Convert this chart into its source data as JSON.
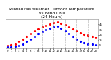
{
  "title": "Milwaukee Weather Outdoor Temperature\nvs Wind Chill\n(24 Hours)",
  "title_fontsize": 4.2,
  "bg_color": "#ffffff",
  "plot_bg_color": "#ffffff",
  "grid_color": "#aaaaaa",
  "temp_color": "#ff0000",
  "wind_color": "#0000ff",
  "hours": [
    0,
    1,
    2,
    3,
    4,
    5,
    6,
    7,
    8,
    9,
    10,
    11,
    12,
    13,
    14,
    15,
    16,
    17,
    18,
    19,
    20,
    21,
    22,
    23
  ],
  "temp": [
    5,
    6,
    8,
    12,
    17,
    22,
    27,
    32,
    36,
    40,
    43,
    46,
    48,
    49,
    47,
    44,
    40,
    36,
    32,
    28,
    26,
    24,
    22,
    21
  ],
  "wind": [
    2,
    2,
    3,
    5,
    8,
    12,
    17,
    22,
    27,
    31,
    35,
    38,
    40,
    42,
    38,
    33,
    27,
    22,
    17,
    13,
    10,
    8,
    7,
    6
  ],
  "xlim": [
    -0.5,
    23.5
  ],
  "ylim": [
    0,
    55
  ],
  "yticks": [
    5,
    15,
    25,
    35,
    45
  ],
  "xtick_positions": [
    0,
    1,
    2,
    3,
    4,
    5,
    6,
    7,
    8,
    9,
    10,
    11,
    12,
    13,
    14,
    15,
    16,
    17,
    18,
    19,
    20,
    21,
    22,
    23
  ],
  "xtick_labels": [
    "0",
    "1",
    "2",
    "3",
    "4",
    "5",
    "6",
    "7",
    "8",
    "9",
    "10",
    "11",
    "12",
    "13",
    "14",
    "15",
    "16",
    "17",
    "18",
    "19",
    "20",
    "21",
    "22",
    "23"
  ],
  "tick_fontsize": 2.8,
  "marker_size": 1.3,
  "linewidth": 0.0,
  "grid_positions": [
    0,
    3,
    6,
    9,
    12,
    15,
    18,
    21
  ]
}
